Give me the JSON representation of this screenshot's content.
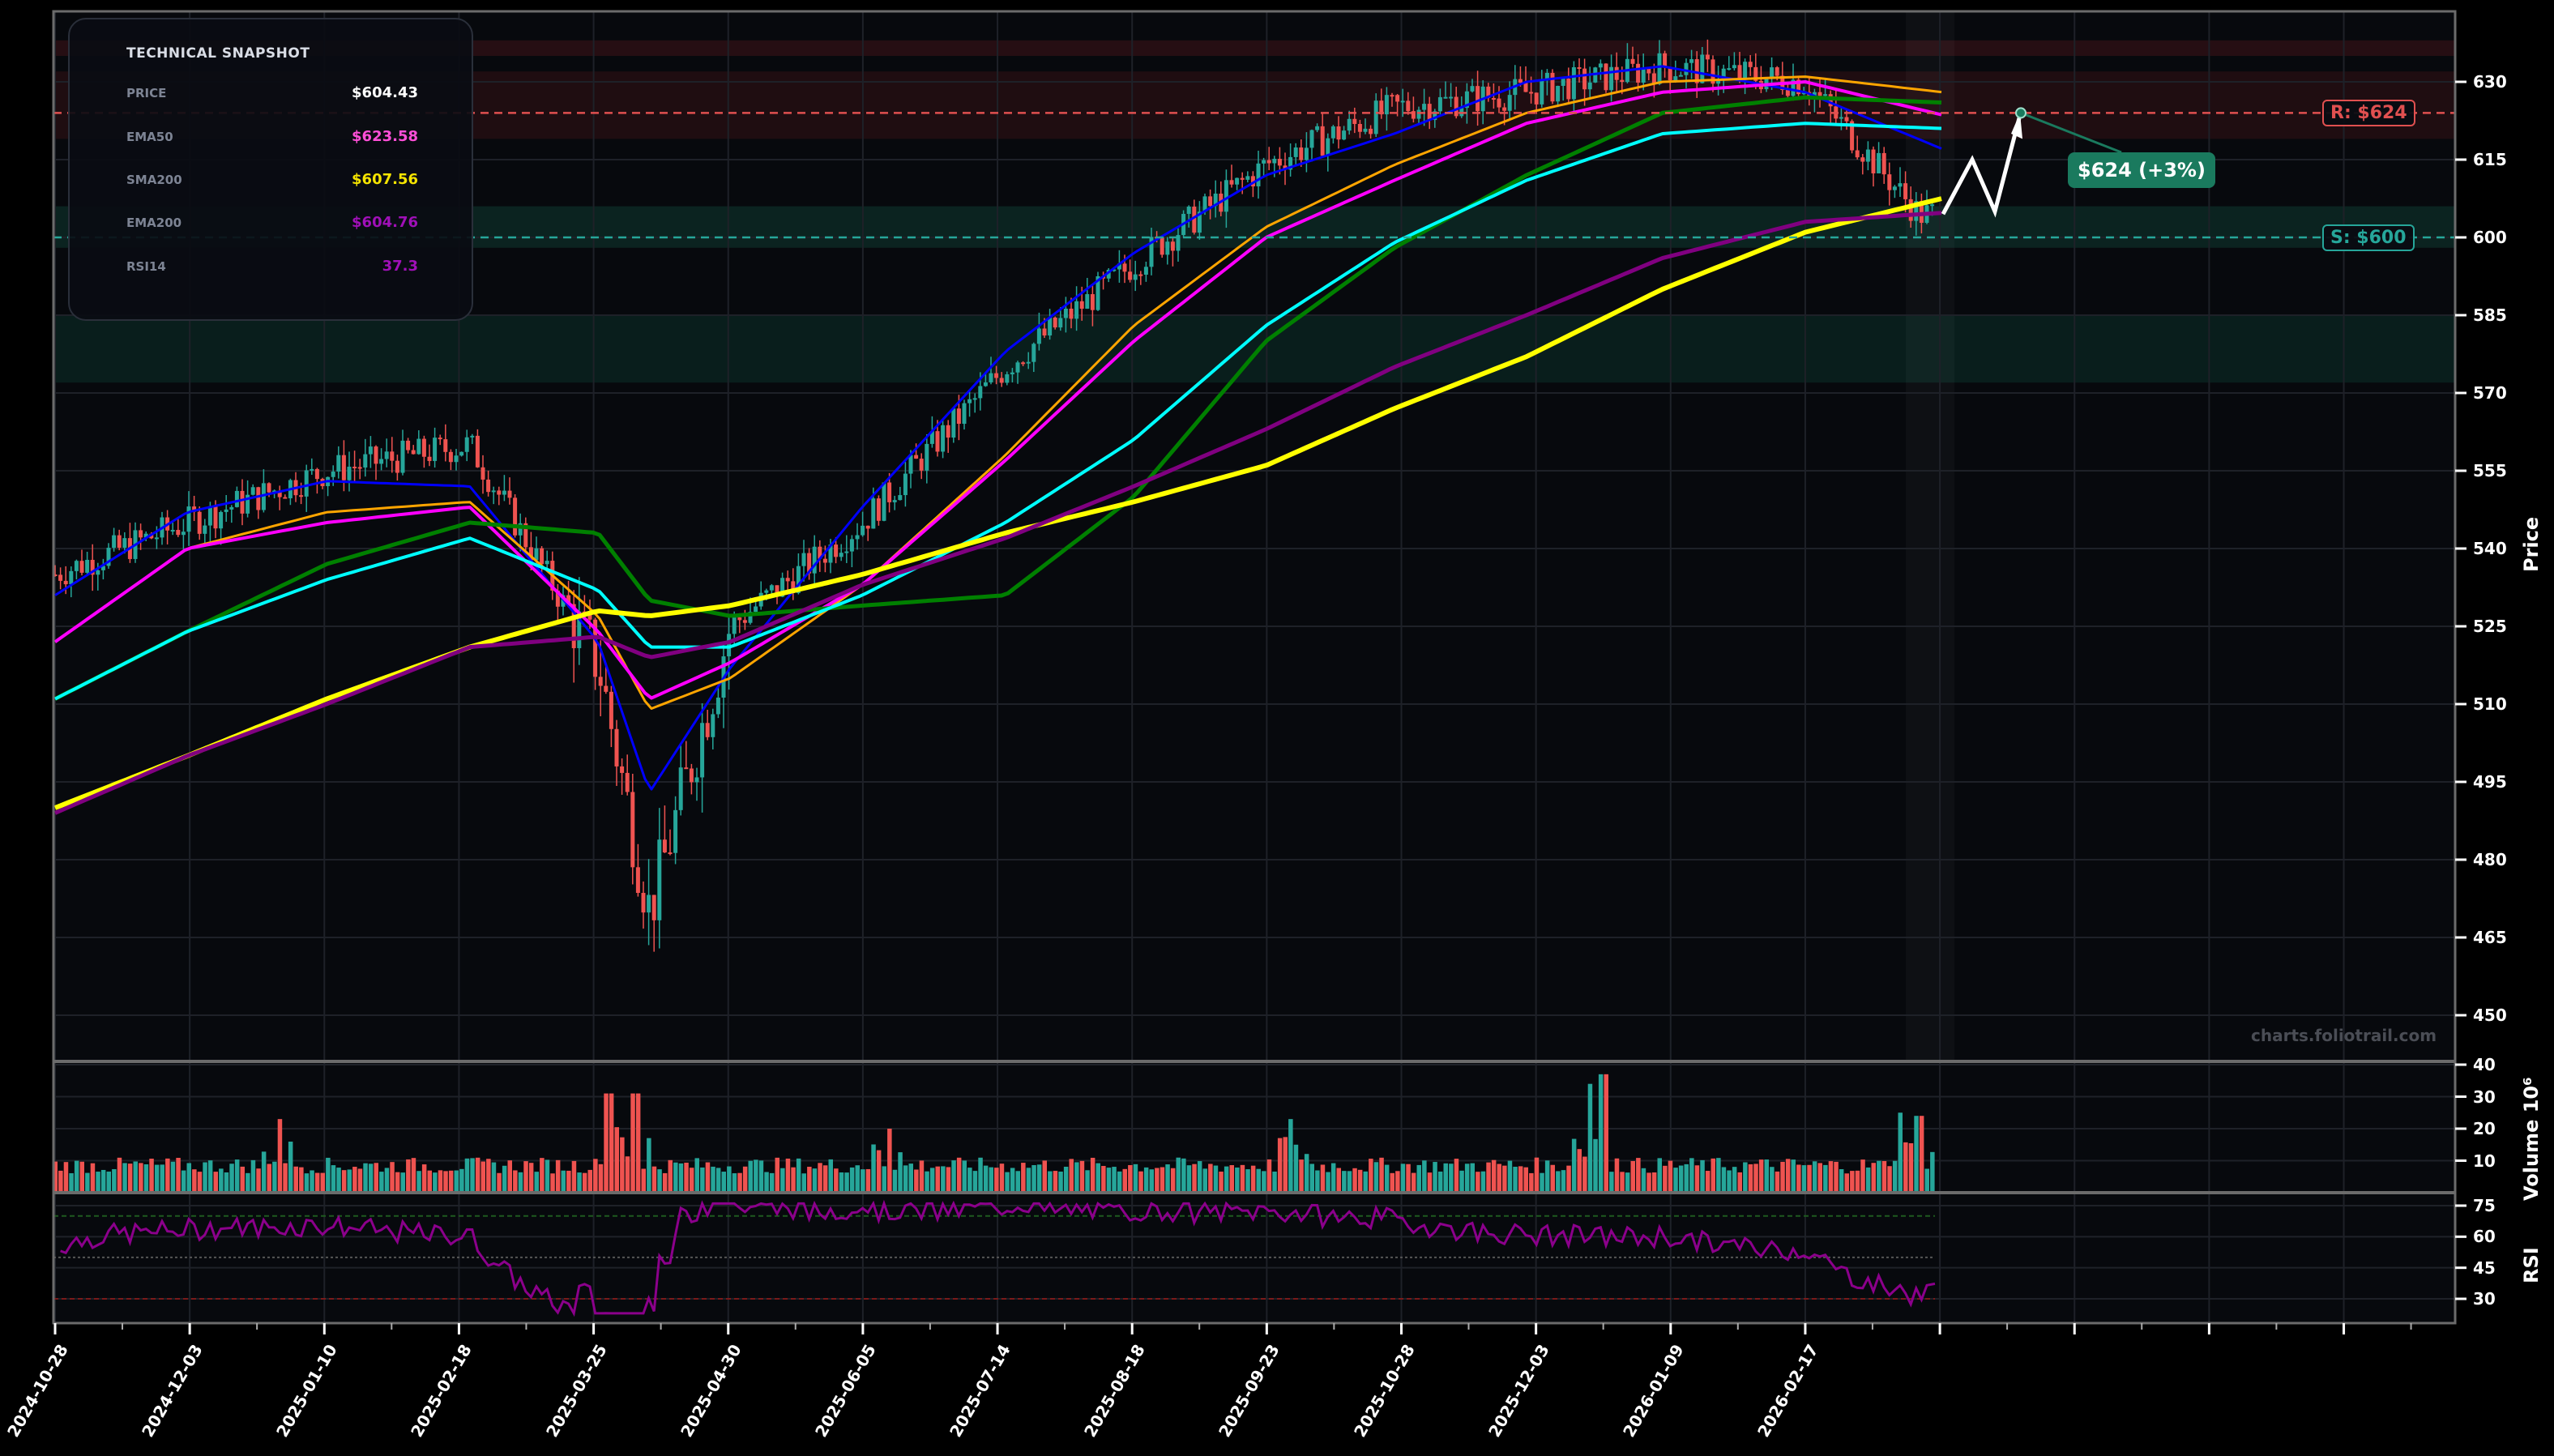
{
  "snapshot": {
    "title": "TECHNICAL SNAPSHOT",
    "rows": [
      {
        "label": "PRICE",
        "value": "$604.43",
        "color": "#ffffff"
      },
      {
        "label": "EMA50",
        "value": "$623.58",
        "color": "#ff4fd8"
      },
      {
        "label": "SMA200",
        "value": "$607.56",
        "color": "#f5e400"
      },
      {
        "label": "EMA200",
        "value": "$604.76",
        "color": "#a010b8"
      },
      {
        "label": "RSI14",
        "value": "37.3",
        "color": "#a010b8"
      }
    ]
  },
  "levels": {
    "resistance_label": "R: $624",
    "support_label": "S: $600",
    "resistance_color": "#e05050",
    "support_color": "#26a69a"
  },
  "projection": {
    "label": "$624 (+3%)",
    "target": 624
  },
  "watermark": "charts.foliotrail.com",
  "axes": {
    "price_title": "Price",
    "volume_title": "Volume  10⁶",
    "rsi_title": "RSI"
  },
  "colors": {
    "background": "#07090d",
    "up": "#26a69a",
    "down": "#ef5350",
    "ema_fast": "#0000ff",
    "ema21": "#ffa500",
    "ema50": "#ff00ff",
    "sma50": "#008000",
    "sma100": "#00ffff",
    "sma200": "#ffff00",
    "ema200": "#800080",
    "rsi": "#8b008b"
  },
  "chart_data": {
    "type": "candlestick",
    "title": "",
    "xlabel": "",
    "ylabel": "Price",
    "ylim": [
      440,
      638
    ],
    "x_ticks": [
      "2024-10-28",
      "2024-12-03",
      "2025-01-10",
      "2025-02-18",
      "2025-03-25",
      "2025-04-30",
      "2025-06-05",
      "2025-07-14",
      "2025-08-18",
      "2025-09-23",
      "2025-10-28",
      "2025-12-03",
      "2026-01-09",
      "2026-02-17"
    ],
    "y_ticks": [
      450,
      465,
      480,
      495,
      510,
      525,
      540,
      555,
      570,
      585,
      600,
      615,
      630
    ],
    "price_close_approx": {
      "x": [
        "2024-10-28",
        "2024-12-03",
        "2025-01-10",
        "2025-02-18",
        "2025-03-25",
        "2025-04-08",
        "2025-04-30",
        "2025-06-05",
        "2025-07-14",
        "2025-08-18",
        "2025-09-23",
        "2025-10-28",
        "2025-12-03",
        "2026-01-09",
        "2026-02-17",
        "2026-03-20"
      ],
      "values": [
        535,
        545,
        555,
        560,
        518,
        470,
        525,
        545,
        575,
        595,
        614,
        625,
        628,
        633,
        630,
        604.43
      ]
    },
    "series": [
      {
        "name": "EMA fast (blue)",
        "values": [
          531,
          547,
          553,
          552,
          522,
          493,
          517,
          548,
          578,
          597,
          612,
          620,
          630,
          633,
          628,
          617
        ]
      },
      {
        "name": "EMA21 (orange)",
        "values": [
          522,
          540,
          547,
          549,
          527,
          509,
          515,
          533,
          558,
          583,
          602,
          614,
          624,
          630,
          631,
          628
        ]
      },
      {
        "name": "EMA50",
        "values": [
          522,
          540,
          545,
          548,
          524,
          511,
          518,
          533,
          557,
          580,
          600,
          611,
          622,
          628,
          630,
          623.58
        ]
      },
      {
        "name": "SMA50 (green)",
        "values": [
          511,
          524,
          537,
          545,
          543,
          530,
          527,
          529,
          531,
          550,
          580,
          598,
          612,
          624,
          627,
          626
        ]
      },
      {
        "name": "SMA100 (cyan)",
        "values": [
          511,
          524,
          534,
          542,
          532,
          521,
          521,
          531,
          545,
          561,
          583,
          599,
          611,
          620,
          622,
          621
        ]
      },
      {
        "name": "SMA200",
        "values": [
          490,
          500,
          511,
          521,
          528,
          527,
          529,
          535,
          543,
          549,
          556,
          567,
          577,
          590,
          601,
          607.56
        ]
      },
      {
        "name": "EMA200",
        "values": [
          489,
          500,
          510,
          521,
          523,
          519,
          522,
          533,
          542,
          552,
          563,
          575,
          585,
          596,
          603,
          604.76
        ]
      }
    ],
    "support": 600,
    "resistance": 624,
    "support_zone": [
      598,
      606
    ],
    "support_zone_2": [
      572,
      585
    ],
    "resistance_zone": [
      619,
      632
    ],
    "resistance_zone_top": [
      635,
      638
    ],
    "volume": {
      "ylabel": "Volume (10^6)",
      "ylim": [
        0,
        40
      ],
      "y_ticks": [
        10,
        20,
        30,
        40
      ],
      "typical": 6,
      "spikes": [
        {
          "x": "2024-12-28",
          "value": 23
        },
        {
          "x": "2025-03-28",
          "value": 31
        },
        {
          "x": "2025-04-04",
          "value": 31
        },
        {
          "x": "2025-06-12",
          "value": 20
        },
        {
          "x": "2025-09-30",
          "value": 23
        },
        {
          "x": "2025-12-20",
          "value": 34
        },
        {
          "x": "2025-12-24",
          "value": 37
        },
        {
          "x": "2026-03-15",
          "value": 25
        },
        {
          "x": "2026-03-20",
          "value": 24
        }
      ]
    },
    "rsi": {
      "ylabel": "RSI",
      "ylim": [
        22,
        80
      ],
      "y_ticks": [
        30,
        45,
        60,
        75
      ],
      "overbought": 70,
      "oversold": 30,
      "midline": 50,
      "last": 37.3,
      "min": 23,
      "max": 76
    }
  }
}
